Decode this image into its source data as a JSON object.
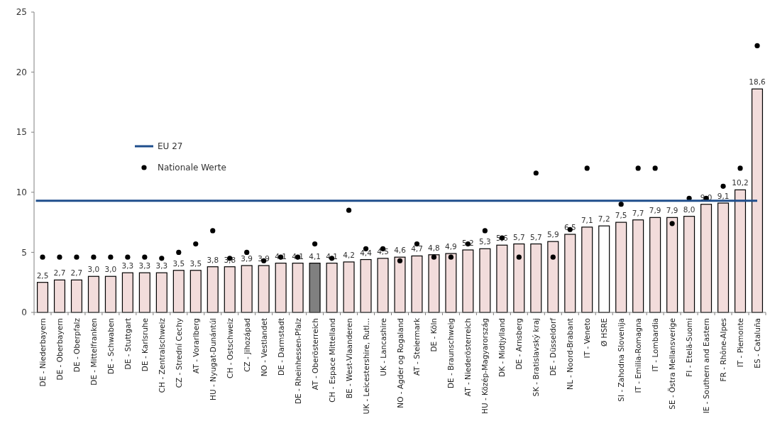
{
  "chart_data": {
    "type": "bar",
    "categories": [
      "DE - Niederbayern",
      "DE - Oberbayern",
      "DE - Oberpfalz",
      "DE - Mittelfranken",
      "DE - Schwaben",
      "DE - Stuttgart",
      "DE - Karlsruhe",
      "CH - Zentralschweiz",
      "CZ - Strední Cechy",
      "AT - Vorarlberg",
      "HU - Nyugat-Dunántúl",
      "CH - Ostschweiz",
      "CZ - Jihozápad",
      "NO - Vestlandet",
      "DE - Darmstadt",
      "DE - Rheinhessen-Pfalz",
      "AT - Oberösterreich",
      "CH - Espace Mittelland",
      "BE - West-Vlaanderen",
      "UK - Leicestershire, Rutl...",
      "UK - Lancashire",
      "NO - Agder og Rogaland",
      "AT - Steiermark",
      "DE - Köln",
      "DE - Braunschweig",
      "AT - Niederösterreich",
      "HU - Közép-Magyarország",
      "DK - Midtjylland",
      "DE - Arnsberg",
      "SK - Bratislavský kraj",
      "DE - Düsseldorf",
      "NL - Noord-Brabant",
      "IT - Veneto",
      "Ø HSRE",
      "SI - Zahodna Slovenija",
      "IT - Emilia-Romagna",
      "IT - Lombardia",
      "SE - Östra Mellansverige",
      "FI - Etelä-Suomi",
      "IE - Southern and Eastern",
      "FR - Rhône-Alpes",
      "IT - Piemonte",
      "ES - Cataluña"
    ],
    "series": [
      {
        "values": [
          2.5,
          2.7,
          2.7,
          3.0,
          3.0,
          3.3,
          3.3,
          3.3,
          3.5,
          3.5,
          3.8,
          3.8,
          3.9,
          3.9,
          4.1,
          4.1,
          4.1,
          4.1,
          4.2,
          4.4,
          4.5,
          4.6,
          4.7,
          4.8,
          4.9,
          5.2,
          5.3,
          5.6,
          5.7,
          5.7,
          5.9,
          6.5,
          7.1,
          7.2,
          7.5,
          7.7,
          7.9,
          7.9,
          8.0,
          9.0,
          9.1,
          10.2,
          18.6
        ],
        "value_labels": [
          "2,5",
          "2,7",
          "2,7",
          "3,0",
          "3,0",
          "3,3",
          "3,3",
          "3,3",
          "3,5",
          "3,5",
          "3,8",
          "3,8",
          "3,9",
          "3,9",
          "4,1",
          "4,1",
          "4,1",
          "4,1",
          "4,2",
          "4,4",
          "4,5",
          "4,6",
          "4,7",
          "4,8",
          "4,9",
          "5,2",
          "5,3",
          "5,6",
          "5,7",
          "5,7",
          "5,9",
          "6,5",
          "7,1",
          "7,2",
          "7,5",
          "7,7",
          "7,9",
          "7,9",
          "8,0",
          "9,0",
          "9,1",
          "10,2",
          "18,6"
        ],
        "colors": [
          "#f2dcdb",
          "#f2dcdb",
          "#f2dcdb",
          "#f2dcdb",
          "#f2dcdb",
          "#f2dcdb",
          "#f2dcdb",
          "#f2dcdb",
          "#f2dcdb",
          "#f2dcdb",
          "#f2dcdb",
          "#f2dcdb",
          "#f2dcdb",
          "#f2dcdb",
          "#f2dcdb",
          "#f2dcdb",
          "#808080",
          "#f2dcdb",
          "#f2dcdb",
          "#f2dcdb",
          "#f2dcdb",
          "#f2dcdb",
          "#f2dcdb",
          "#f2dcdb",
          "#f2dcdb",
          "#f2dcdb",
          "#f2dcdb",
          "#f2dcdb",
          "#f2dcdb",
          "#f2dcdb",
          "#f2dcdb",
          "#f2dcdb",
          "#f2dcdb",
          "#ffffff",
          "#f2dcdb",
          "#f2dcdb",
          "#f2dcdb",
          "#f2dcdb",
          "#f2dcdb",
          "#f2dcdb",
          "#f2dcdb",
          "#f2dcdb",
          "#f2dcdb"
        ]
      },
      {
        "type": "scatter",
        "name": "Nationale Werte",
        "color": "#000000",
        "marker": "circle",
        "x": [
          "DE - Niederbayern",
          "DE - Oberbayern",
          "DE - Oberpfalz",
          "DE - Mittelfranken",
          "DE - Schwaben",
          "DE - Stuttgart",
          "DE - Karlsruhe",
          "CH - Zentralschweiz",
          "CZ - Strední Cechy",
          "AT - Vorarlberg",
          "HU - Nyugat-Dunántúl",
          "CH - Ostschweiz",
          "CZ - Jihozápad",
          "NO - Vestlandet",
          "DE - Darmstadt",
          "DE - Rheinhessen-Pfalz",
          "AT - Oberösterreich",
          "CH - Espace Mittelland",
          "BE - West-Vlaanderen",
          "UK - Leicestershire, Rutl...",
          "UK - Lancashire",
          "NO - Agder og Rogaland",
          "AT - Steiermark",
          "DE - Köln",
          "DE - Braunschweig",
          "AT - Niederösterreich",
          "HU - Közép-Magyarország",
          "DK - Midtjylland",
          "DE - Arnsberg",
          "SK - Bratislavský kraj",
          "DE - Düsseldorf",
          "NL - Noord-Brabant",
          "IT - Veneto",
          "SI - Zahodna Slovenija",
          "IT - Emilia-Romagna",
          "IT - Lombardia",
          "SE - Östra Mellansverige",
          "FI - Etelä-Suomi",
          "IE - Southern and Eastern",
          "FR - Rhône-Alpes",
          "IT - Piemonte",
          "ES - Cataluña"
        ],
        "values": [
          4.6,
          4.6,
          4.6,
          4.6,
          4.6,
          4.6,
          4.6,
          4.5,
          5.0,
          5.7,
          6.8,
          4.5,
          5.0,
          4.3,
          4.6,
          4.6,
          5.7,
          4.5,
          8.5,
          5.3,
          5.3,
          4.3,
          5.7,
          4.6,
          4.6,
          5.7,
          6.8,
          6.2,
          4.6,
          11.6,
          4.6,
          6.9,
          12.0,
          9.0,
          12.0,
          12.0,
          7.4,
          9.5,
          9.5,
          10.5,
          12.0,
          22.2
        ]
      }
    ],
    "ref_lines": [
      {
        "axis": "y",
        "value": 9.3,
        "label": "EU 27",
        "color": "#1f4e8c",
        "line_style": "solid"
      }
    ],
    "ylim": [
      0,
      25
    ],
    "yticks": [
      0,
      5,
      10,
      15,
      20,
      25
    ],
    "legend": "left"
  }
}
